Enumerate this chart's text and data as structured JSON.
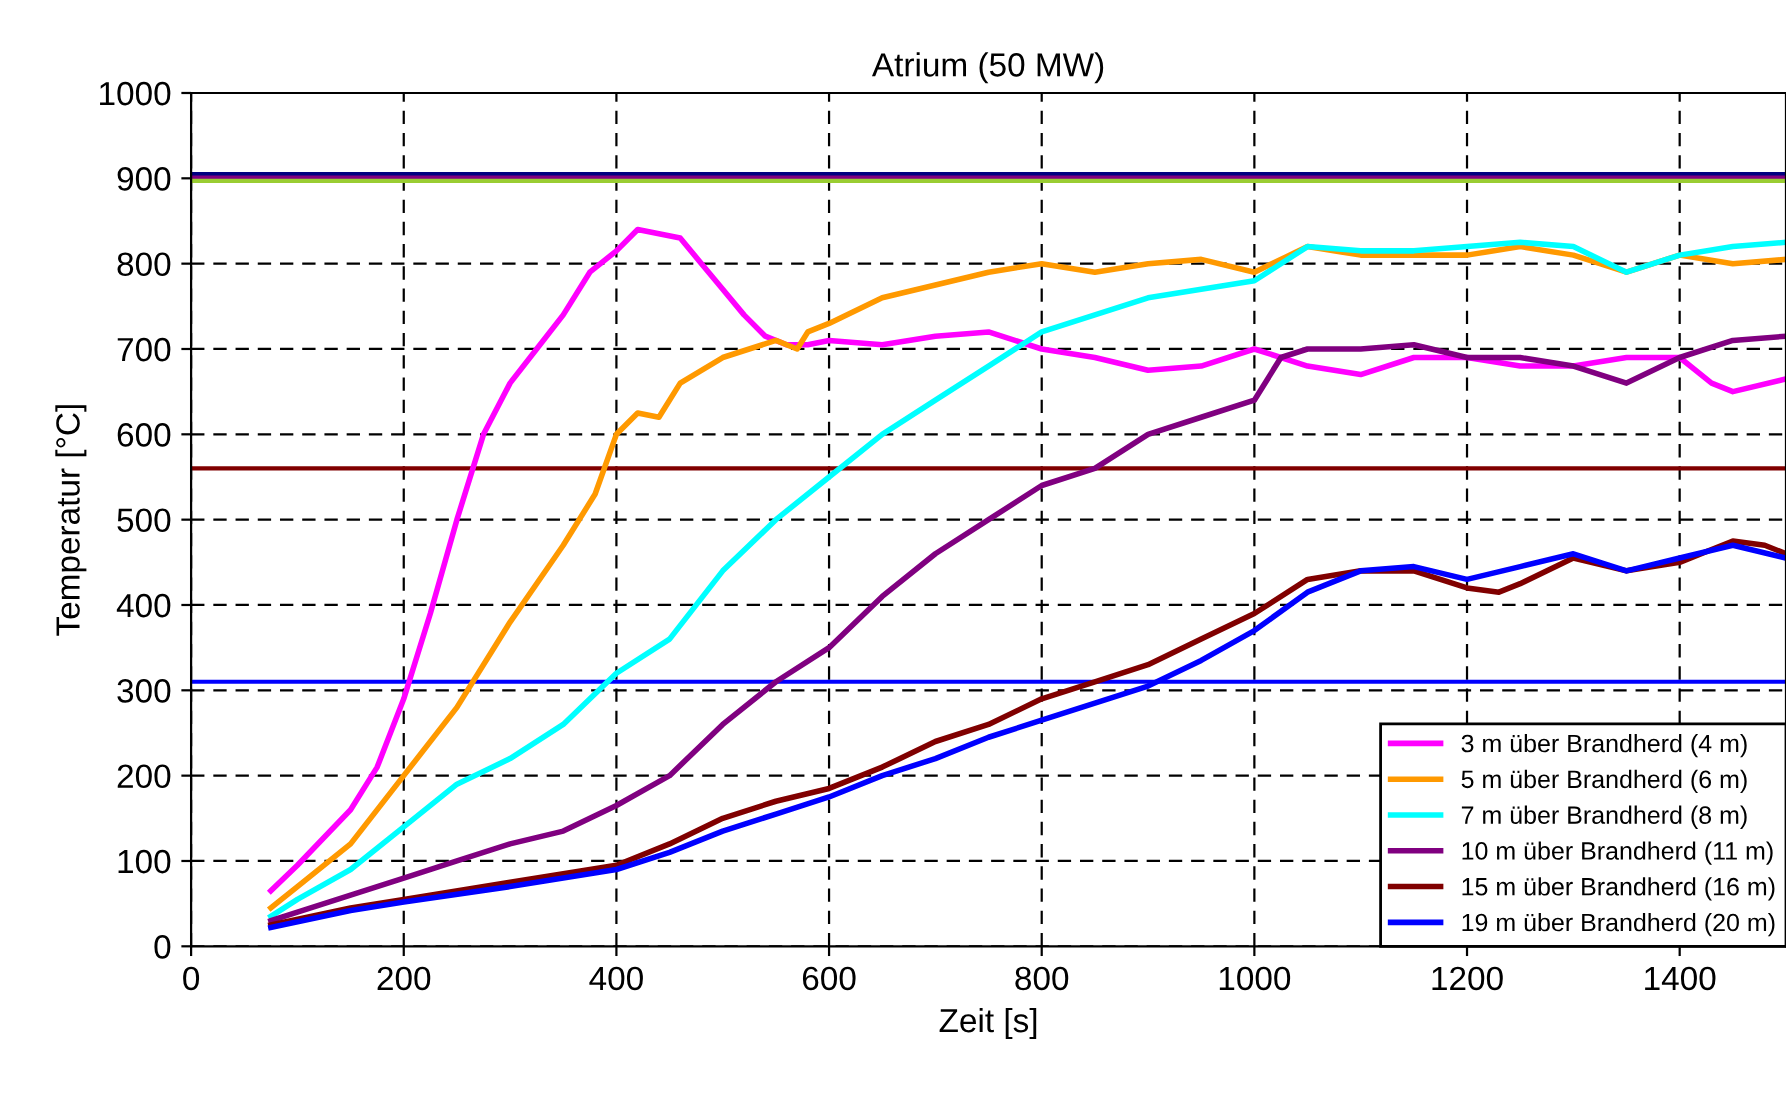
{
  "chart_data": {
    "type": "line",
    "title": "Atrium (50 MW)",
    "xlabel": "Zeit [s]",
    "ylabel": "Temperatur [°C]",
    "xlim": [
      0,
      1500
    ],
    "xticks": [
      0,
      200,
      400,
      600,
      800,
      1000,
      1200,
      1400
    ],
    "ylim": [
      0,
      1000
    ],
    "yticks": [
      0,
      100,
      200,
      300,
      400,
      500,
      600,
      700,
      800,
      900,
      1000
    ],
    "grid": true,
    "legend": "bottom right",
    "marker": "none",
    "line_style": "solid",
    "ref_lines": [
      {
        "axis": "y",
        "value": 905,
        "color": "#000080"
      },
      {
        "axis": "y",
        "value": 901,
        "color": "#800080"
      },
      {
        "axis": "y",
        "value": 897,
        "color": "#9acd32"
      },
      {
        "axis": "y",
        "value": 560,
        "color": "#800000"
      },
      {
        "axis": "y",
        "value": 310,
        "color": "#0000ff"
      }
    ],
    "series": [
      {
        "name": "3 m über Brandherd (4 m)",
        "color": "#ff00ff",
        "x": [
          75,
          100,
          150,
          175,
          200,
          225,
          250,
          275,
          300,
          325,
          350,
          375,
          400,
          420,
          440,
          460,
          480,
          500,
          520,
          540,
          560,
          580,
          600,
          650,
          700,
          750,
          800,
          850,
          900,
          950,
          1000,
          1050,
          1100,
          1150,
          1200,
          1250,
          1300,
          1350,
          1400,
          1430,
          1450,
          1500
        ],
        "values": [
          65,
          95,
          160,
          210,
          290,
          390,
          500,
          600,
          660,
          700,
          740,
          790,
          815,
          840,
          835,
          830,
          800,
          770,
          740,
          715,
          705,
          705,
          710,
          705,
          715,
          720,
          700,
          690,
          675,
          680,
          700,
          680,
          670,
          690,
          690,
          680,
          680,
          690,
          690,
          660,
          650,
          665
        ]
      },
      {
        "name": "5 m über Brandherd (6 m)",
        "color": "#ff9900",
        "x": [
          75,
          100,
          150,
          200,
          250,
          300,
          350,
          380,
          400,
          420,
          440,
          460,
          500,
          550,
          570,
          580,
          600,
          650,
          700,
          750,
          800,
          850,
          900,
          950,
          1000,
          1050,
          1100,
          1150,
          1200,
          1250,
          1300,
          1350,
          1400,
          1450,
          1500
        ],
        "values": [
          45,
          70,
          120,
          200,
          280,
          380,
          470,
          530,
          600,
          625,
          620,
          660,
          690,
          710,
          700,
          720,
          730,
          760,
          775,
          790,
          800,
          790,
          800,
          805,
          790,
          820,
          810,
          810,
          810,
          820,
          810,
          790,
          810,
          800,
          805
        ]
      },
      {
        "name": "7 m über Brandherd (8 m)",
        "color": "#00ffff",
        "x": [
          75,
          100,
          150,
          200,
          250,
          300,
          350,
          400,
          450,
          500,
          550,
          600,
          650,
          700,
          750,
          800,
          850,
          900,
          950,
          1000,
          1050,
          1100,
          1150,
          1200,
          1250,
          1300,
          1350,
          1400,
          1450,
          1500
        ],
        "values": [
          35,
          55,
          90,
          140,
          190,
          220,
          260,
          320,
          360,
          440,
          500,
          550,
          600,
          640,
          680,
          720,
          740,
          760,
          770,
          780,
          820,
          815,
          815,
          820,
          825,
          820,
          790,
          810,
          820,
          825
        ]
      },
      {
        "name": "10 m über Brandherd (11 m)",
        "color": "#800080",
        "x": [
          75,
          100,
          150,
          200,
          250,
          300,
          350,
          400,
          450,
          500,
          550,
          600,
          650,
          700,
          750,
          800,
          850,
          900,
          950,
          1000,
          1025,
          1050,
          1100,
          1150,
          1200,
          1250,
          1300,
          1350,
          1400,
          1450,
          1500
        ],
        "values": [
          30,
          40,
          60,
          80,
          100,
          120,
          135,
          165,
          200,
          260,
          310,
          350,
          410,
          460,
          500,
          540,
          560,
          600,
          620,
          640,
          690,
          700,
          700,
          705,
          690,
          690,
          680,
          660,
          690,
          710,
          715
        ]
      },
      {
        "name": "15 m über Brandherd (16 m)",
        "color": "#800000",
        "x": [
          75,
          150,
          200,
          300,
          400,
          450,
          500,
          550,
          600,
          650,
          700,
          750,
          800,
          850,
          900,
          950,
          1000,
          1050,
          1100,
          1150,
          1200,
          1230,
          1250,
          1300,
          1350,
          1400,
          1450,
          1480,
          1500
        ],
        "values": [
          25,
          45,
          55,
          75,
          95,
          120,
          150,
          170,
          185,
          210,
          240,
          260,
          290,
          310,
          330,
          360,
          390,
          430,
          440,
          440,
          420,
          415,
          425,
          455,
          440,
          450,
          475,
          470,
          460
        ]
      },
      {
        "name": "19 m über Brandherd (20 m)",
        "color": "#0000ff",
        "x": [
          75,
          150,
          200,
          300,
          400,
          450,
          500,
          550,
          600,
          650,
          700,
          750,
          800,
          850,
          900,
          950,
          1000,
          1050,
          1100,
          1150,
          1200,
          1250,
          1300,
          1350,
          1400,
          1450,
          1500
        ],
        "values": [
          22,
          42,
          52,
          70,
          90,
          110,
          135,
          155,
          175,
          200,
          220,
          245,
          265,
          285,
          305,
          335,
          370,
          415,
          440,
          445,
          430,
          445,
          460,
          440,
          455,
          470,
          455
        ]
      }
    ]
  }
}
